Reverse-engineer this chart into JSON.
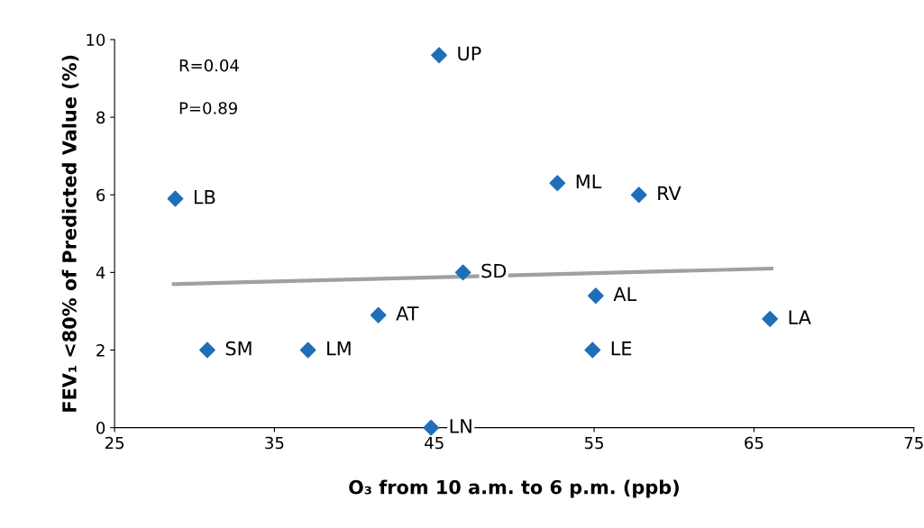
{
  "chart_data": {
    "type": "scatter",
    "xlabel": "O₃ from 10 a.m. to 6 p.m. (ppb)",
    "ylabel": "FEV₁ <80% of Predicted Value (%)",
    "xlim": [
      25,
      75
    ],
    "xticks": [
      25,
      35,
      45,
      55,
      65,
      75
    ],
    "ylim": [
      0,
      10
    ],
    "yticks": [
      0,
      2,
      4,
      6,
      8,
      10
    ],
    "grid": false,
    "series": [
      {
        "marker": "diamond",
        "color": "#1f6fb8",
        "x": [
          45.3,
          28.8,
          52.7,
          57.8,
          46.8,
          55.1,
          41.5,
          66.0,
          30.8,
          37.1,
          54.9,
          44.8
        ],
        "values": [
          9.6,
          5.9,
          6.3,
          6.0,
          4.0,
          3.4,
          2.9,
          2.8,
          2.0,
          2.0,
          2.0,
          0.0
        ]
      },
      {
        "type": "line",
        "marker": "none",
        "color": "#a0a0a0",
        "x": [
          28.7,
          66.1
        ],
        "values": [
          3.7,
          4.1
        ]
      }
    ],
    "annotations": [
      "R=0.04",
      "P=0.89",
      {
        "text": "UP",
        "x": 45.3,
        "y": 9.6
      },
      {
        "text": "LB",
        "x": 28.8,
        "y": 5.9
      },
      {
        "text": "ML",
        "x": 52.7,
        "y": 6.3
      },
      {
        "text": "RV",
        "x": 57.8,
        "y": 6.0
      },
      {
        "text": "SD",
        "x": 46.8,
        "y": 4.0
      },
      {
        "text": "AL",
        "x": 55.1,
        "y": 3.4
      },
      {
        "text": "AT",
        "x": 41.5,
        "y": 2.9
      },
      {
        "text": "LA",
        "x": 66.0,
        "y": 2.8
      },
      {
        "text": "SM",
        "x": 30.8,
        "y": 2.0
      },
      {
        "text": "LM",
        "x": 37.1,
        "y": 2.0
      },
      {
        "text": "LE",
        "x": 54.9,
        "y": 2.0
      },
      {
        "text": "LN",
        "x": 44.8,
        "y": 0.0
      }
    ]
  }
}
